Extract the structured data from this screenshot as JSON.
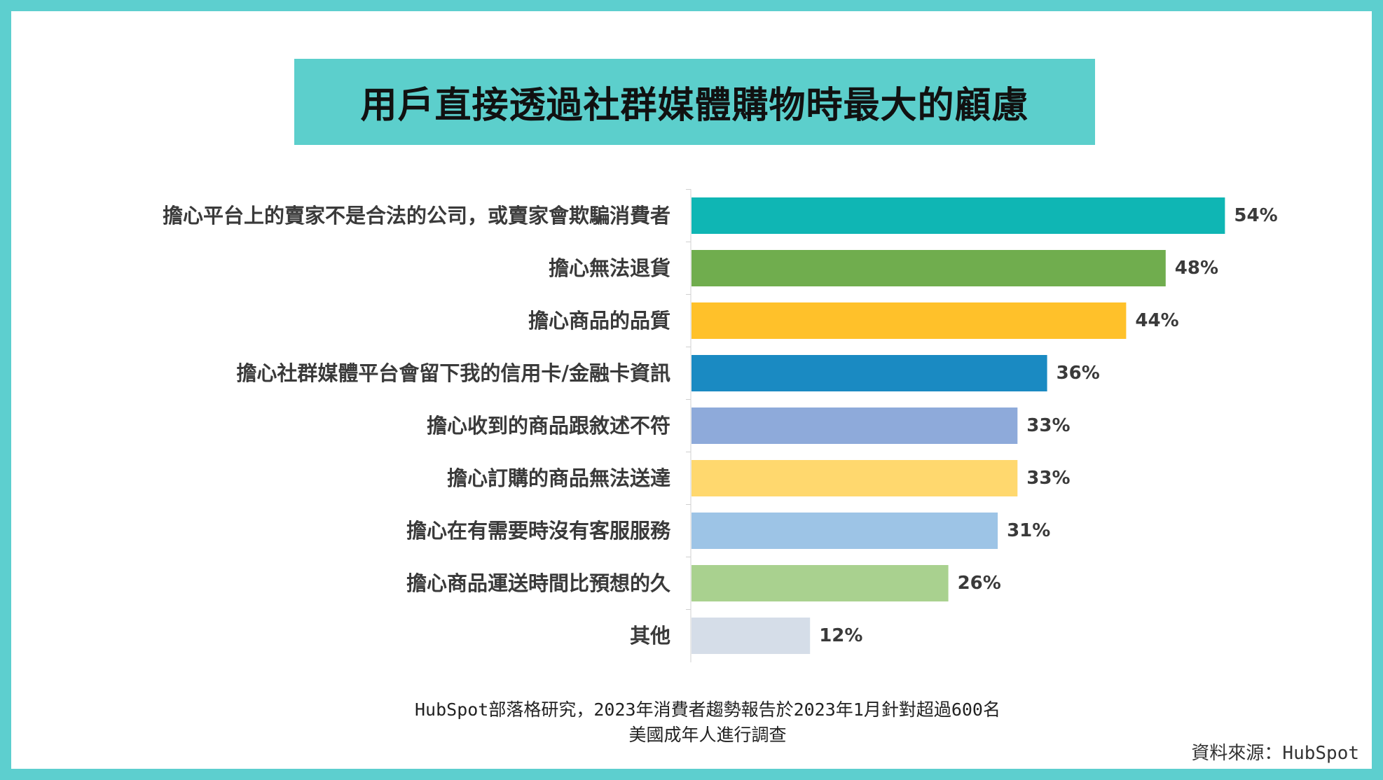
{
  "title": "用戶直接透過社群媒體購物時最大的顧慮",
  "chart_data": {
    "type": "bar",
    "orientation": "horizontal",
    "title": "用戶直接透過社群媒體購物時最大的顧慮",
    "unit": "%",
    "categories": [
      "擔心平台上的賣家不是合法的公司，或賣家會欺騙消費者",
      "擔心無法退貨",
      "擔心商品的品質",
      "擔心社群媒體平台會留下我的信用卡/金融卡資訊",
      "擔心收到的商品跟敘述不符",
      "擔心訂購的商品無法送達",
      "擔心在有需要時沒有客服服務",
      "擔心商品運送時間比預想的久",
      "其他"
    ],
    "values": [
      54,
      48,
      44,
      36,
      33,
      33,
      31,
      26,
      12
    ],
    "value_labels": [
      "54%",
      "48%",
      "44%",
      "36%",
      "33%",
      "33%",
      "31%",
      "26%",
      "12%"
    ],
    "colors": [
      "#0fb6b4",
      "#70ad4e",
      "#ffc12a",
      "#1a8ac2",
      "#8eaada",
      "#ffd86e",
      "#9dc4e6",
      "#a9d18f",
      "#d5dde8"
    ],
    "xlim": [
      0,
      60
    ],
    "grid": false,
    "legend": "none"
  },
  "source_note": {
    "line1": "HubSpot部落格研究，2023年消費者趨勢報告於2023年1月針對超過600名",
    "line2": "美國成年人進行調查"
  },
  "credit": "資料來源：HubSpot",
  "colors": {
    "frame": "#5dcfcf",
    "title_background": "#5ccfcc"
  }
}
